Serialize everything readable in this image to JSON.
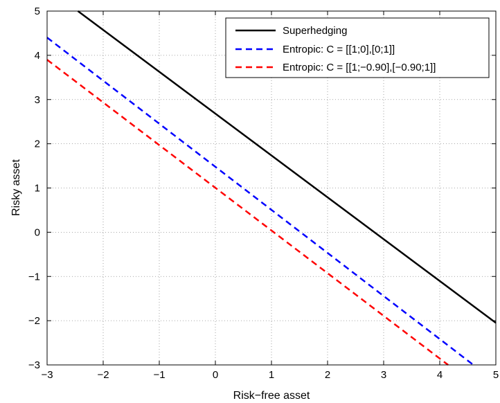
{
  "chart_data": {
    "type": "line",
    "title": "",
    "xlabel": "Risk−free asset",
    "ylabel": "Risky asset",
    "xlim": [
      -3,
      5
    ],
    "ylim": [
      -3,
      5
    ],
    "xticks": [
      "−3",
      "−2",
      "−1",
      "0",
      "1",
      "2",
      "3",
      "4",
      "5"
    ],
    "yticks": [
      "−3",
      "−2",
      "−1",
      "0",
      "1",
      "2",
      "3",
      "4",
      "5"
    ],
    "grid": true,
    "legend_position": "top-right",
    "series": [
      {
        "name": "Superhedging",
        "color": "#000000",
        "style": "solid",
        "x": [
          -2.45,
          5.0
        ],
        "y": [
          5.0,
          -2.05
        ]
      },
      {
        "name": "Entropic: C = [[1;0],[0;1]]",
        "color": "#0000ff",
        "style": "dashed",
        "x": [
          -3.0,
          4.6
        ],
        "y": [
          4.4,
          -3.0
        ]
      },
      {
        "name": "Entropic: C = [[1;−0.90],[−0.90;1]]",
        "color": "#ff0000",
        "style": "dashed",
        "x": [
          -3.0,
          4.15
        ],
        "y": [
          3.9,
          -3.0
        ]
      }
    ]
  }
}
